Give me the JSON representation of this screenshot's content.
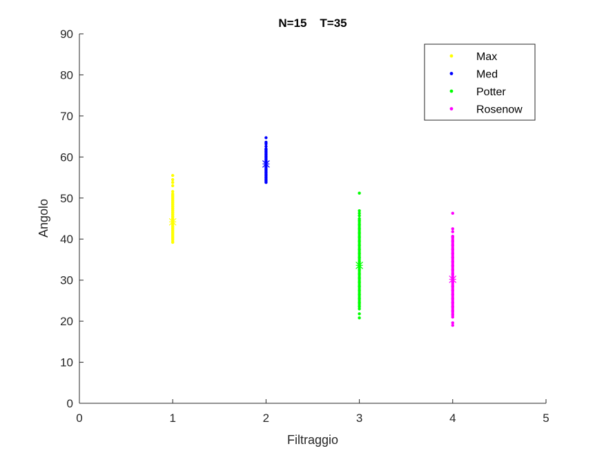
{
  "chart_data": {
    "type": "scatter",
    "title": "N=15    T=35",
    "xlabel": "Filtraggio",
    "ylabel": "Angolo",
    "xlim": [
      0,
      5
    ],
    "ylim": [
      0,
      90
    ],
    "xticks": [
      0,
      1,
      2,
      3,
      4,
      5
    ],
    "yticks": [
      0,
      10,
      20,
      30,
      40,
      50,
      60,
      70,
      80,
      90
    ],
    "grid": false,
    "legend_position": "top-right",
    "series": [
      {
        "name": "Max",
        "color": "#ffff00",
        "x": 1,
        "mean": 44.2,
        "range": [
          39.2,
          51.0
        ],
        "points": [
          39.2,
          40.0,
          40.5,
          41.0,
          41.5,
          42.0,
          42.5,
          43.0,
          43.5,
          44.0,
          44.5,
          45.0,
          45.5,
          46.0,
          46.5,
          47.0,
          47.5,
          48.0,
          48.5,
          49.0,
          49.5,
          50.0,
          50.5,
          51.0,
          51.6,
          53.0,
          53.8,
          54.5,
          55.5
        ]
      },
      {
        "name": "Med",
        "color": "#0000ff",
        "x": 2,
        "mean": 58.3,
        "range": [
          53.8,
          62.0
        ],
        "points": [
          53.8,
          54.2,
          54.6,
          55.0,
          55.4,
          55.8,
          56.2,
          56.6,
          57.0,
          57.4,
          57.8,
          58.2,
          58.6,
          59.0,
          59.4,
          59.8,
          60.2,
          60.6,
          61.0,
          61.4,
          61.8,
          62.0,
          62.6,
          63.2,
          63.6,
          64.7
        ]
      },
      {
        "name": "Potter",
        "color": "#00ff00",
        "x": 3,
        "mean": 33.6,
        "range": [
          23.5,
          45.0
        ],
        "points": [
          20.8,
          21.8,
          23.0,
          23.5,
          24.5,
          25.5,
          26.5,
          27.5,
          28.5,
          29.5,
          30.5,
          31.5,
          32.5,
          33.5,
          34.5,
          35.5,
          36.5,
          37.5,
          38.5,
          39.5,
          40.5,
          41.5,
          42.5,
          43.5,
          44.5,
          45.0,
          45.7,
          46.3,
          46.9,
          51.2
        ]
      },
      {
        "name": "Rosenow",
        "color": "#ff00ff",
        "x": 4,
        "mean": 30.2,
        "range": [
          21.5,
          40.7
        ],
        "points": [
          19.0,
          19.6,
          21.0,
          21.5,
          22.5,
          23.5,
          24.5,
          25.5,
          26.5,
          27.5,
          28.5,
          29.5,
          30.5,
          31.5,
          32.5,
          33.5,
          34.5,
          35.5,
          36.5,
          37.5,
          38.5,
          39.5,
          40.5,
          40.7,
          41.8,
          42.5,
          46.3
        ]
      }
    ]
  }
}
